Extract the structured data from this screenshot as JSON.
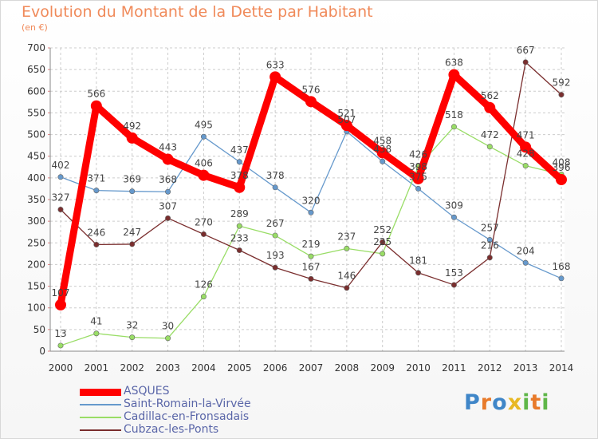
{
  "header": {
    "title": "Evolution du Montant de la Dette par Habitant",
    "subtitle": "(en €)"
  },
  "chart_data": {
    "type": "line",
    "title": "Evolution du Montant de la Dette par Habitant",
    "subtitle": "(en €)",
    "xlabel": "",
    "ylabel": "",
    "categories": [
      "2000",
      "2001",
      "2002",
      "2003",
      "2004",
      "2005",
      "2006",
      "2007",
      "2008",
      "2009",
      "2010",
      "2011",
      "2012",
      "2013",
      "2014"
    ],
    "ylim": [
      0,
      700
    ],
    "yticks": [
      0,
      50,
      100,
      150,
      200,
      250,
      300,
      350,
      400,
      450,
      500,
      550,
      600,
      650,
      700
    ],
    "grid": true,
    "legend_position": "bottom-left",
    "series": [
      {
        "name": "ASQUES",
        "color": "#ff0000",
        "values": [
          107,
          566,
          492,
          443,
          406,
          378,
          633,
          576,
          521,
          458,
          398,
          638,
          562,
          471,
          396
        ]
      },
      {
        "name": "Saint-Romain-la-Virvée",
        "color": "#6699cc",
        "values": [
          402,
          371,
          369,
          368,
          495,
          437,
          378,
          320,
          507,
          438,
          375,
          309,
          257,
          204,
          168
        ]
      },
      {
        "name": "Cadillac-en-Fronsadais",
        "color": "#99dd66",
        "values": [
          13,
          41,
          32,
          30,
          126,
          289,
          267,
          219,
          237,
          225,
          426,
          518,
          472,
          428,
          408
        ]
      },
      {
        "name": "Cubzac-les-Ponts",
        "color": "#7a2e2e",
        "values": [
          327,
          246,
          247,
          307,
          270,
          233,
          193,
          167,
          146,
          252,
          181,
          153,
          216,
          667,
          592
        ]
      }
    ]
  },
  "logo": {
    "text": "Proxiti",
    "letters": [
      {
        "char": "P",
        "color": "#3f86c8"
      },
      {
        "char": "r",
        "color": "#e87a2a"
      },
      {
        "char": "o",
        "color": "#3f86c8"
      },
      {
        "char": "x",
        "color": "#e8b823"
      },
      {
        "char": "i",
        "color": "#5fb648"
      },
      {
        "char": "t",
        "color": "#e87a2a"
      },
      {
        "char": "i",
        "color": "#5fb648"
      }
    ]
  }
}
